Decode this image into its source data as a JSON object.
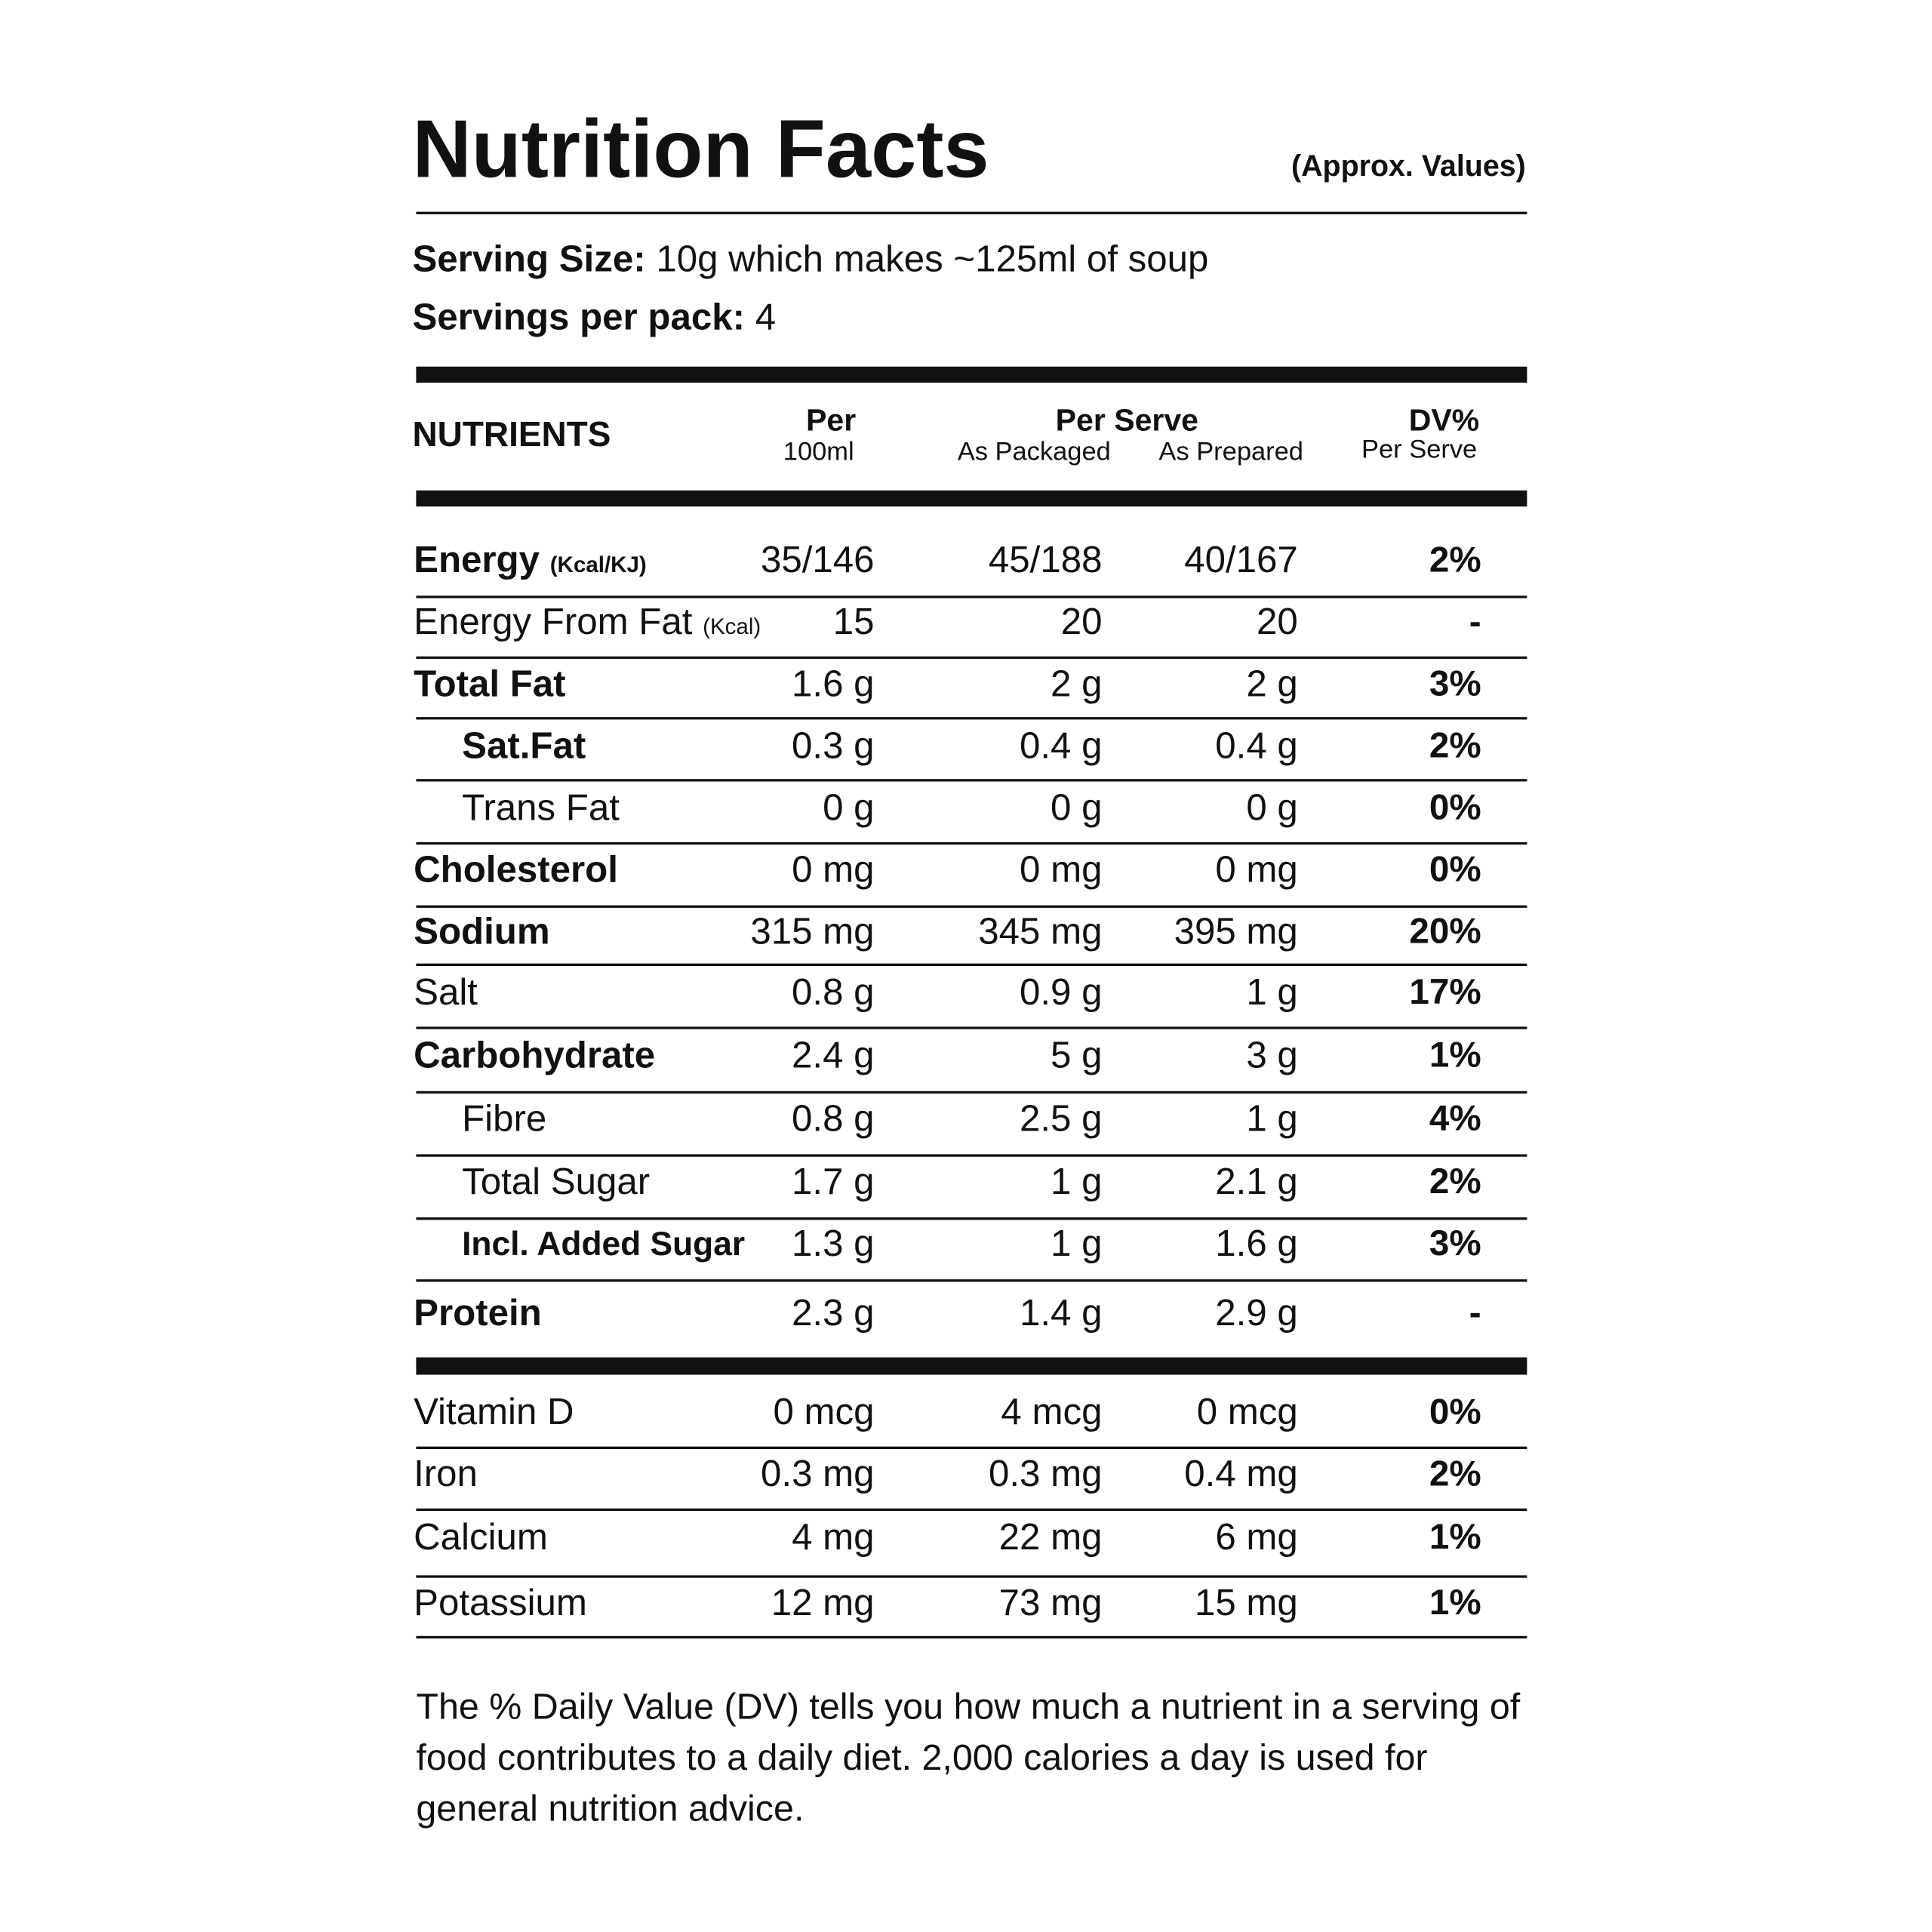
{
  "header": {
    "title": "Nutrition Facts",
    "note": "(Approx. Values)"
  },
  "serving": {
    "size_label": "Serving Size:",
    "size_value": "10g which makes ~125ml of soup",
    "servings_label": "Servings per pack:",
    "servings_value": "4"
  },
  "table": {
    "columns": {
      "nutrients": "NUTRIENTS",
      "per": "Per",
      "per_unit": "100ml",
      "per_serve": "Per Serve",
      "packaged": "As Packaged",
      "prepared": "As Prepared",
      "dv": "DV%",
      "dv_sub": "Per Serve"
    },
    "sections": [
      {
        "rows": [
          {
            "name": "Energy",
            "unit": "(Kcal/KJ)",
            "values": [
              "35/146",
              "45/188",
              "40/167"
            ],
            "dv": "2%"
          },
          {
            "name": "Energy From Fat",
            "unit": "(Kcal)",
            "values": [
              "15",
              "20",
              "20"
            ],
            "dv": "-"
          },
          {
            "name": "Total Fat",
            "values": [
              "1.6 g",
              "2 g",
              "2 g"
            ],
            "dv": "3%"
          },
          {
            "name": "Sat.Fat",
            "values": [
              "0.3 g",
              "0.4 g",
              "0.4 g"
            ],
            "dv": "2%"
          },
          {
            "name": "Trans Fat",
            "values": [
              "0 g",
              "0 g",
              "0 g"
            ],
            "dv": "0%"
          },
          {
            "name": "Cholesterol",
            "values": [
              "0 mg",
              "0 mg",
              "0 mg"
            ],
            "dv": "0%"
          },
          {
            "name": "Sodium",
            "values": [
              "315 mg",
              "345 mg",
              "395 mg"
            ],
            "dv": "20%"
          },
          {
            "name": "Salt",
            "values": [
              "0.8 g",
              "0.9 g",
              "1 g"
            ],
            "dv": "17%"
          },
          {
            "name": "Carbohydrate",
            "values": [
              "2.4 g",
              "5 g",
              "3 g"
            ],
            "dv": "1%"
          },
          {
            "name": "Fibre",
            "values": [
              "0.8 g",
              "2.5 g",
              "1 g"
            ],
            "dv": "4%"
          },
          {
            "name": "Total Sugar",
            "values": [
              "1.7 g",
              "1 g",
              "2.1 g"
            ],
            "dv": "2%"
          },
          {
            "name": "Incl. Added Sugar",
            "values": [
              "1.3 g",
              "1 g",
              "1.6 g"
            ],
            "dv": "3%"
          },
          {
            "name": "Protein",
            "values": [
              "2.3 g",
              "1.4 g",
              "2.9 g"
            ],
            "dv": "-"
          }
        ]
      },
      {
        "rows": [
          {
            "name": "Vitamin D",
            "values": [
              "0 mcg",
              "4 mcg",
              "0 mcg"
            ],
            "dv": "0%"
          },
          {
            "name": "Iron",
            "values": [
              "0.3 mg",
              "0.3 mg",
              "0.4 mg"
            ],
            "dv": "2%"
          },
          {
            "name": "Calcium",
            "values": [
              "4 mg",
              "22 mg",
              "6 mg"
            ],
            "dv": "1%"
          },
          {
            "name": "Potassium",
            "values": [
              "12 mg",
              "73 mg",
              "15 mg"
            ],
            "dv": "1%"
          }
        ]
      }
    ]
  },
  "footer": "The % Daily Value (DV) tells you how much a nutrient in a serving of food contributes to a daily diet. 2,000 calories a day is used for general nutrition advice."
}
